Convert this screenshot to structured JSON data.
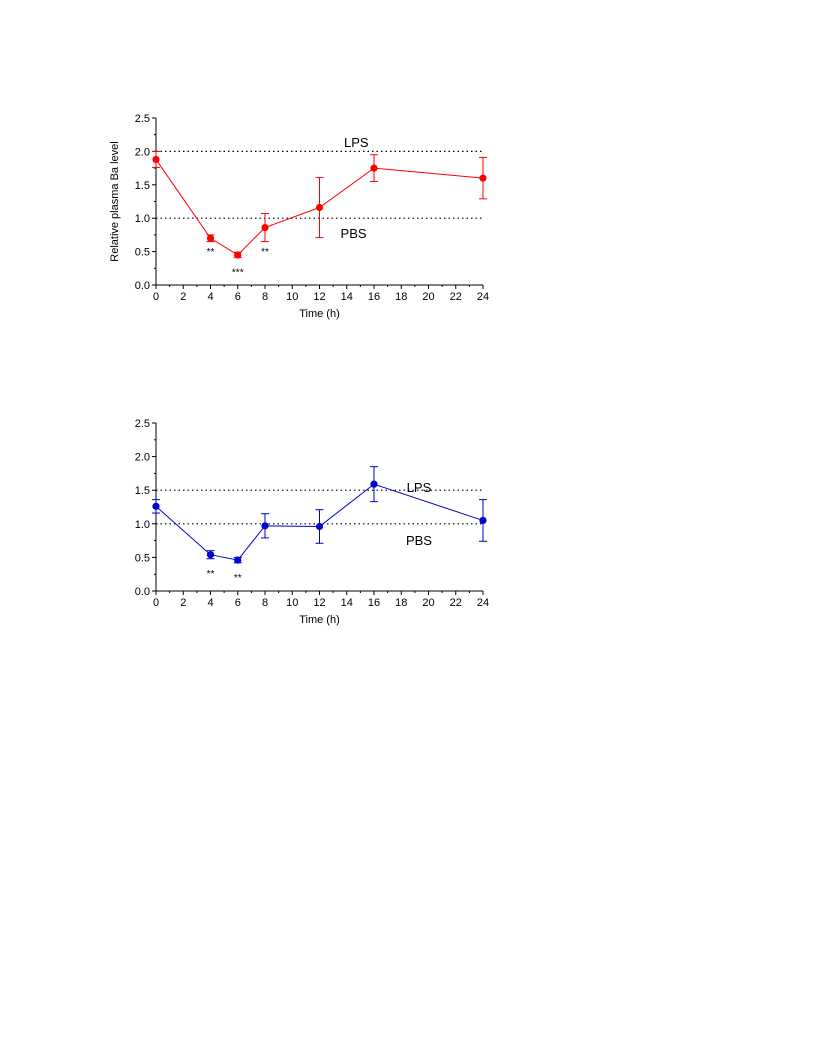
{
  "chart_data": [
    {
      "type": "line",
      "xlabel": "Time (h)",
      "ylabel": "Relative plasma Ba level",
      "xlim": [
        0,
        24
      ],
      "ylim": [
        0,
        2.5
      ],
      "x_ticks": [
        0,
        2,
        4,
        6,
        8,
        10,
        12,
        14,
        16,
        18,
        20,
        22,
        24
      ],
      "x_tick_labels": [
        "0",
        "2",
        "4",
        "6",
        "8",
        "10",
        "12",
        "14",
        "16",
        "18",
        "20",
        "22",
        "24"
      ],
      "y_ticks": [
        0,
        0.5,
        1.0,
        1.5,
        2.0,
        2.5
      ],
      "y_tick_labels": [
        "0.0",
        "0.5",
        "1.0",
        "1.5",
        "2.0",
        "2.5"
      ],
      "color": "#ff0000",
      "grid": false,
      "series": [
        {
          "x": [
            0,
            4,
            6,
            8,
            12,
            16,
            24
          ],
          "y": [
            1.88,
            0.7,
            0.45,
            0.86,
            1.16,
            1.75,
            1.6
          ],
          "err": [
            0.12,
            0.05,
            0.04,
            0.21,
            0.45,
            0.2,
            0.31
          ]
        }
      ],
      "reference_lines": [
        {
          "y": 2.0,
          "label": "LPS",
          "label_x": 14.7,
          "label_y": 2.14
        },
        {
          "y": 1.0,
          "label": "PBS",
          "label_x": 14.5,
          "label_y": 0.78
        }
      ],
      "annotations": [
        {
          "x": 4,
          "y": 0.51,
          "text": "**"
        },
        {
          "x": 6,
          "y": 0.2,
          "text": "***"
        },
        {
          "x": 8,
          "y": 0.51,
          "text": "**"
        }
      ]
    },
    {
      "type": "line",
      "xlabel": "Time (h)",
      "ylabel": "",
      "xlim": [
        0,
        24
      ],
      "ylim": [
        0,
        2.5
      ],
      "x_ticks": [
        0,
        2,
        4,
        6,
        8,
        10,
        12,
        14,
        16,
        18,
        20,
        22,
        24
      ],
      "x_tick_labels": [
        "0",
        "2",
        "4",
        "6",
        "8",
        "10",
        "12",
        "14",
        "16",
        "18",
        "20",
        "22",
        "24"
      ],
      "y_ticks": [
        0,
        0.5,
        1.0,
        1.5,
        2.0,
        2.5
      ],
      "y_tick_labels": [
        "0.0",
        "0.5",
        "1.0",
        "1.5",
        "2.0",
        "2.5"
      ],
      "color": "#0000cc",
      "grid": false,
      "series": [
        {
          "x": [
            0,
            4,
            6,
            8,
            12,
            16,
            24
          ],
          "y": [
            1.26,
            0.54,
            0.46,
            0.97,
            0.96,
            1.59,
            1.05
          ],
          "err": [
            0.1,
            0.06,
            0.04,
            0.18,
            0.25,
            0.26,
            0.31
          ]
        }
      ],
      "reference_lines": [
        {
          "y": 1.5,
          "label": "LPS",
          "label_x": 19.3,
          "label_y": 1.55
        },
        {
          "y": 1.0,
          "label": "PBS",
          "label_x": 19.3,
          "label_y": 0.76
        }
      ],
      "annotations": [
        {
          "x": 4,
          "y": 0.27,
          "text": "**"
        },
        {
          "x": 6,
          "y": 0.21,
          "text": "**"
        }
      ]
    }
  ]
}
